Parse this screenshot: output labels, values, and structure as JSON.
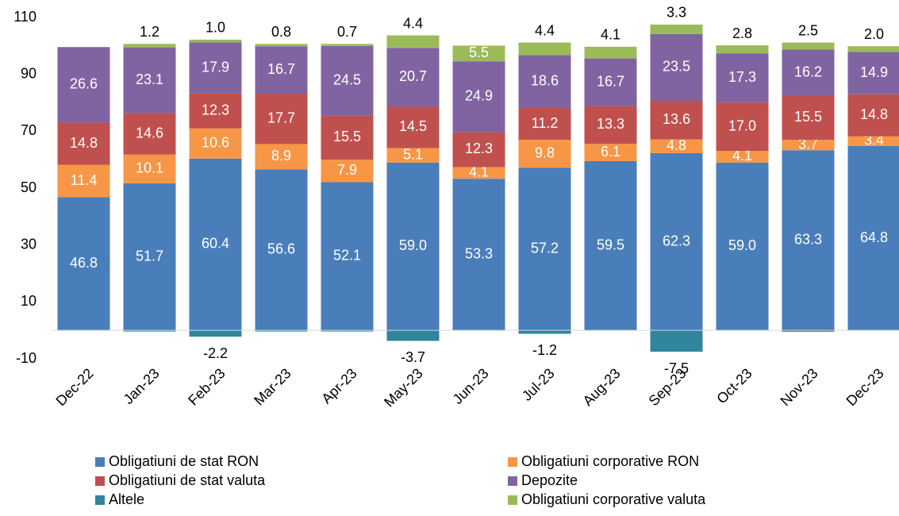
{
  "chart_data": {
    "type": "stacked_bar",
    "categories": [
      "Dec-22",
      "Jan-23",
      "Feb-23",
      "Mar-23",
      "Apr-23",
      "May-23",
      "Jun-23",
      "Jul-23",
      "Aug-23",
      "Sep-23",
      "Oct-23",
      "Nov-23",
      "Dec-23"
    ],
    "series": [
      {
        "name": "Obligatiuni de stat RON",
        "color": "#4a7ebb",
        "values": [
          46.8,
          51.7,
          60.4,
          56.6,
          52.1,
          59.0,
          53.3,
          57.2,
          59.5,
          62.3,
          59.0,
          63.3,
          64.8
        ],
        "value_labels": [
          "46.8",
          "51.7",
          "60.4",
          "56.6",
          "52.1",
          "59.0",
          "53.3",
          "57.2",
          "59.5",
          "62.3",
          "59.0",
          "63.3",
          "64.8"
        ]
      },
      {
        "name": "Obligatiuni corporative RON",
        "color": "#f79646",
        "values": [
          11.4,
          10.1,
          10.6,
          8.9,
          7.9,
          5.1,
          4.1,
          9.8,
          6.1,
          4.8,
          4.1,
          3.7,
          3.4
        ],
        "value_labels": [
          "11.4",
          "10.1",
          "10.6",
          "8.9",
          "7.9",
          "5.1",
          "4.1",
          "9.8",
          "6.1",
          "4.8",
          "4.1",
          "3.7",
          "3.4"
        ]
      },
      {
        "name": "Obligatiuni de stat valuta",
        "color": "#c0504d",
        "values": [
          14.8,
          14.6,
          12.3,
          17.7,
          15.5,
          14.5,
          12.3,
          11.2,
          13.3,
          13.6,
          17.0,
          15.5,
          14.8
        ],
        "value_labels": [
          "14.8",
          "14.6",
          "12.3",
          "17.7",
          "15.5",
          "14.5",
          "12.3",
          "11.2",
          "13.3",
          "13.6",
          "17.0",
          "15.5",
          "14.8"
        ]
      },
      {
        "name": "Depozite",
        "color": "#8064a2",
        "values": [
          26.6,
          23.1,
          17.9,
          16.7,
          24.5,
          20.7,
          24.9,
          18.6,
          16.7,
          23.5,
          17.3,
          16.2,
          14.9
        ],
        "value_labels": [
          "26.6",
          "23.1",
          "17.9",
          "16.7",
          "24.5",
          "20.7",
          "24.9",
          "18.6",
          "16.7",
          "23.5",
          "17.3",
          "16.2",
          "14.9"
        ]
      },
      {
        "name": "Altele",
        "color": "#31859c",
        "values": [
          0,
          -0.4,
          -2.2,
          -0.4,
          -0.4,
          -3.7,
          0,
          -1.2,
          0,
          -7.5,
          0,
          -0.5,
          0
        ],
        "value_labels": [
          null,
          null,
          "-2.2",
          null,
          null,
          "-3.7",
          null,
          "-1.2",
          null,
          "-7.5",
          null,
          null,
          null
        ]
      },
      {
        "name": "Obligatiuni corporative valuta",
        "color": "#9bbb59",
        "values": [
          0,
          1.2,
          1.0,
          0.8,
          0.7,
          4.4,
          5.5,
          4.4,
          4.1,
          3.3,
          2.8,
          2.5,
          2.0
        ],
        "value_labels": [
          null,
          "1.2",
          "1.0",
          "0.8",
          "0.7",
          "4.4",
          "5.5",
          "4.4",
          "4.1",
          "3.3",
          "2.8",
          "2.5",
          "2.0"
        ]
      }
    ],
    "ylim": [
      -10,
      110
    ],
    "yticks": [
      -10,
      10,
      30,
      50,
      70,
      90,
      110
    ],
    "grid": false
  }
}
